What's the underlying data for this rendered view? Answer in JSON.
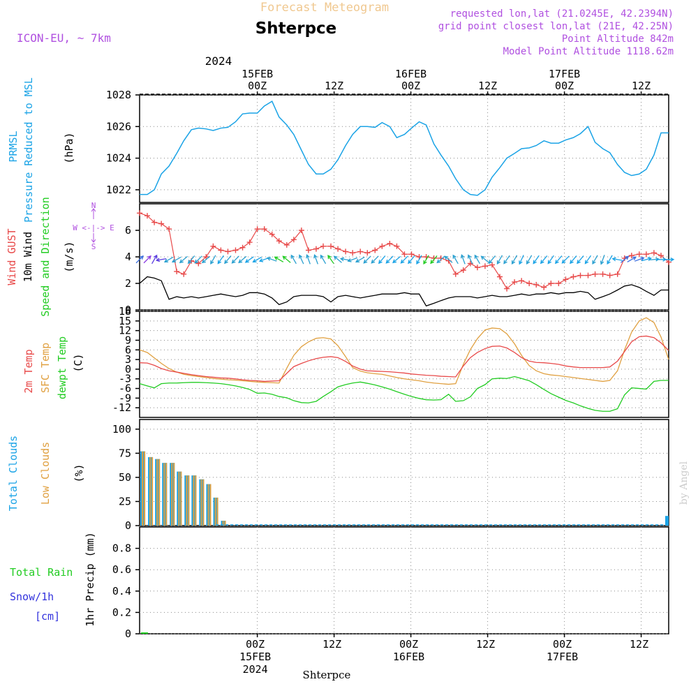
{
  "header": {
    "title": "Forecast Meteogram",
    "location": "Shterpce",
    "model": "ICON-EU, ~ 7km",
    "requested": "requested lon,lat (21.0245E, 42.2394N)",
    "gridpoint": "grid point closest lon,lat (21E, 42.25N)",
    "point_alt": "Point Altitude 842m",
    "model_alt": "Model Point Altitude 1118.62m",
    "footer_name": "Shterpce",
    "credit": "by Angel"
  },
  "time_axis": {
    "top_year": "2024",
    "top_labels": [
      {
        "hour": 0,
        "lines": [
          "15FEB",
          "00Z"
        ]
      },
      {
        "hour": 12,
        "lines": [
          "12Z"
        ]
      },
      {
        "hour": 24,
        "lines": [
          "16FEB",
          "00Z"
        ]
      },
      {
        "hour": 36,
        "lines": [
          "12Z"
        ]
      },
      {
        "hour": 48,
        "lines": [
          "17FEB",
          "00Z"
        ]
      },
      {
        "hour": 60,
        "lines": [
          "12Z"
        ]
      }
    ],
    "bottom_labels": [
      {
        "hour": 0,
        "lines": [
          "00Z",
          "15FEB",
          "2024"
        ]
      },
      {
        "hour": 12,
        "lines": [
          "12Z"
        ]
      },
      {
        "hour": 24,
        "lines": [
          "00Z",
          "16FEB"
        ]
      },
      {
        "hour": 36,
        "lines": [
          "12Z"
        ]
      },
      {
        "hour": 48,
        "lines": [
          "00Z",
          "17FEB"
        ]
      },
      {
        "hour": 60,
        "lines": [
          "12Z"
        ]
      }
    ]
  },
  "panel_labels": {
    "pressure": {
      "l1": "PRMSL",
      "l2": "Pressure Reduced to MSL",
      "unit": "(hPa)"
    },
    "wind": {
      "l1": "Wind GUST",
      "l2": "10m Wind",
      "l3": "Speed and Direction",
      "unit": "(m/s)",
      "compass_n": "N",
      "compass_s": "S",
      "compass_ew": "W <-|-> E"
    },
    "temp": {
      "l1": "2m Temp",
      "l2": "SFC Temp",
      "l3": "dewpt Temp",
      "unit": "(C)"
    },
    "cloud": {
      "l1": "Total Clouds",
      "l2": "Low Clouds",
      "unit": "(%)"
    },
    "precip": {
      "l1": "Total  Rain",
      "l2": "Snow/1h",
      "l3": "[cm]",
      "unit": "1hr Precip (mm)"
    }
  },
  "colors": {
    "pressure": "#1aa3e6",
    "gust": "#e84a4a",
    "wind": "#000000",
    "temp2m": "#e84a4a",
    "sfc": "#e0a040",
    "dewpt": "#22cc22",
    "totalcloud": "#1aa3e6",
    "lowcloud": "#e0a040",
    "header_purple": "#b050e0",
    "title_orange": "#f0c890",
    "rain": "#22cc22",
    "snow": "#3333dd"
  },
  "chart_data": [
    {
      "type": "line",
      "ylabel": "(hPa)",
      "ylim": [
        1021.2,
        1028
      ],
      "yticks": [
        1022,
        1024,
        1026,
        1028
      ],
      "x": [
        -18.4,
        -17.2,
        -16.1,
        -15.0,
        -13.8,
        -12.6,
        -11.5,
        -10.3,
        -9.2,
        -8.0,
        -6.9,
        -5.7,
        -4.6,
        -3.4,
        -2.3,
        -1.2,
        0.0,
        1.1,
        2.3,
        3.4,
        4.6,
        5.7,
        6.9,
        8.0,
        9.2,
        10.3,
        11.5,
        12.6,
        13.8,
        14.9,
        16.1,
        17.2,
        18.4,
        19.5,
        20.7,
        21.8,
        23.0,
        24.1,
        25.3,
        26.4,
        27.6,
        28.7,
        29.9,
        31.0,
        32.2,
        33.3,
        34.4,
        35.6,
        36.7,
        37.9,
        39.0,
        40.2,
        41.3,
        42.5,
        43.6,
        44.8,
        45.9,
        47.1,
        48.2,
        49.4,
        50.5,
        51.7,
        52.8,
        54.0,
        55.1,
        56.3,
        57.4,
        58.5,
        59.7,
        60.8,
        62.0,
        63.1,
        64.3
      ],
      "series": [
        {
          "name": "PRMSL",
          "values": [
            1021.7,
            1021.7,
            1022.0,
            1023.0,
            1023.5,
            1024.3,
            1025.1,
            1025.8,
            1025.9,
            1025.85,
            1025.75,
            1025.9,
            1025.95,
            1026.3,
            1026.8,
            1026.85,
            1026.85,
            1027.3,
            1027.6,
            1026.6,
            1026.1,
            1025.5,
            1024.5,
            1023.6,
            1023.0,
            1023.0,
            1023.3,
            1023.9,
            1024.8,
            1025.5,
            1026.0,
            1026.0,
            1025.95,
            1026.25,
            1026.0,
            1025.3,
            1025.5,
            1025.9,
            1026.3,
            1026.1,
            1024.9,
            1024.2,
            1023.5,
            1022.7,
            1022.0,
            1021.7,
            1021.65,
            1022.0,
            1022.8,
            1023.4,
            1024.0,
            1024.3,
            1024.6,
            1024.65,
            1024.8,
            1025.1,
            1024.95,
            1024.95,
            1025.15,
            1025.3,
            1025.55,
            1026.0,
            1025.0,
            1024.6,
            1024.35,
            1023.6,
            1023.1,
            1022.9,
            1023.0,
            1023.3,
            1024.2,
            1025.6,
            1025.6
          ]
        }
      ]
    },
    {
      "type": "line",
      "ylabel": "(m/s)",
      "ylim": [
        0,
        8
      ],
      "yticks": [
        0,
        2,
        4,
        6
      ],
      "x": [
        -18.4,
        -17.2,
        -16.1,
        -15.0,
        -13.8,
        -12.6,
        -11.5,
        -10.3,
        -9.2,
        -8.0,
        -6.9,
        -5.7,
        -4.6,
        -3.4,
        -2.3,
        -1.2,
        0.0,
        1.1,
        2.3,
        3.4,
        4.6,
        5.7,
        6.9,
        8.0,
        9.2,
        10.3,
        11.5,
        12.6,
        13.8,
        14.9,
        16.1,
        17.2,
        18.4,
        19.5,
        20.7,
        21.8,
        23.0,
        24.1,
        25.3,
        26.4,
        27.6,
        28.7,
        29.9,
        31.0,
        32.2,
        33.3,
        34.4,
        35.6,
        36.7,
        37.9,
        39.0,
        40.2,
        41.3,
        42.5,
        43.6,
        44.8,
        45.9,
        47.1,
        48.2,
        49.4,
        50.5,
        51.7,
        52.8,
        54.0,
        55.1,
        56.3,
        57.4,
        58.5,
        59.7,
        60.8,
        62.0,
        63.1,
        64.3
      ],
      "series": [
        {
          "name": "Wind GUST",
          "values": [
            7.3,
            7.1,
            6.6,
            6.5,
            6.1,
            2.9,
            2.7,
            3.7,
            3.5,
            4.0,
            4.8,
            4.5,
            4.4,
            4.5,
            4.7,
            5.1,
            6.1,
            6.1,
            5.7,
            5.2,
            4.9,
            5.3,
            6.0,
            4.5,
            4.6,
            4.8,
            4.8,
            4.6,
            4.4,
            4.3,
            4.4,
            4.3,
            4.5,
            4.8,
            5.0,
            4.8,
            4.2,
            4.2,
            4.0,
            4.0,
            3.9,
            3.9,
            3.7,
            2.7,
            3.0,
            3.5,
            3.2,
            3.3,
            3.4,
            2.5,
            1.6,
            2.1,
            2.2,
            2.0,
            1.9,
            1.7,
            2.0,
            2.0,
            2.3,
            2.5,
            2.6,
            2.6,
            2.7,
            2.7,
            2.6,
            2.7,
            3.9,
            4.1,
            4.2,
            4.2,
            4.3,
            4.1,
            3.6
          ]
        },
        {
          "name": "10m Wind",
          "values": [
            2.0,
            2.5,
            2.4,
            2.2,
            0.8,
            1.0,
            0.9,
            1.0,
            0.9,
            1.0,
            1.1,
            1.2,
            1.1,
            1.0,
            1.1,
            1.3,
            1.3,
            1.2,
            0.9,
            0.4,
            0.6,
            1.0,
            1.1,
            1.1,
            1.1,
            1.0,
            0.6,
            1.0,
            1.1,
            1.0,
            0.9,
            1.0,
            1.1,
            1.2,
            1.2,
            1.2,
            1.3,
            1.2,
            1.2,
            0.3,
            0.5,
            0.7,
            0.9,
            1.0,
            1.0,
            1.0,
            0.9,
            1.0,
            1.1,
            1.0,
            1.0,
            1.1,
            1.2,
            1.1,
            1.2,
            1.2,
            1.3,
            1.2,
            1.3,
            1.3,
            1.4,
            1.3,
            0.8,
            1.0,
            1.2,
            1.5,
            1.8,
            1.9,
            1.7,
            1.4,
            1.1,
            1.5,
            1.5
          ]
        }
      ],
      "wind_barbs": {
        "height_m_s": 3.8,
        "direction_from_deg": [
          225,
          225,
          210,
          80,
          60,
          60,
          50,
          40,
          45,
          50,
          30,
          35,
          40,
          45,
          50,
          55,
          60,
          70,
          110,
          120,
          130,
          150,
          155,
          160,
          160,
          150,
          145,
          130,
          100,
          70,
          60,
          45,
          45,
          40,
          45,
          50,
          45,
          40,
          30,
          30,
          40,
          50,
          130,
          150,
          160,
          155,
          150,
          130,
          40,
          30,
          35,
          30,
          25,
          30,
          35,
          40,
          35,
          40,
          45,
          40,
          40,
          35,
          30,
          20,
          30,
          100,
          230,
          240,
          250,
          255,
          265,
          270,
          270
        ]
      }
    },
    {
      "type": "line",
      "ylabel": "(C)",
      "ylim": [
        -15,
        18
      ],
      "yticks": [
        -12,
        -9,
        -6,
        -3,
        0,
        3,
        6,
        9,
        12,
        15,
        18
      ],
      "x": [
        -18.4,
        -17.2,
        -16.1,
        -15.0,
        -13.8,
        -12.6,
        -11.5,
        -10.3,
        -9.2,
        -8.0,
        -6.9,
        -5.7,
        -4.6,
        -3.4,
        -2.3,
        -1.2,
        0.0,
        1.1,
        2.3,
        3.4,
        4.6,
        5.7,
        6.9,
        8.0,
        9.2,
        10.3,
        11.5,
        12.6,
        13.8,
        14.9,
        16.1,
        17.2,
        18.4,
        19.5,
        20.7,
        21.8,
        23.0,
        24.1,
        25.3,
        26.4,
        27.6,
        28.7,
        29.9,
        31.0,
        32.2,
        33.3,
        34.4,
        35.6,
        36.7,
        37.9,
        39.0,
        40.2,
        41.3,
        42.5,
        43.6,
        44.8,
        45.9,
        47.1,
        48.2,
        49.4,
        50.5,
        51.7,
        52.8,
        54.0,
        55.1,
        56.3,
        57.4,
        58.5,
        59.7,
        60.8,
        62.0,
        63.1,
        64.3
      ],
      "series": [
        {
          "name": "2m Temp",
          "values": [
            2.0,
            1.9,
            1.2,
            0.2,
            -0.5,
            -0.9,
            -1.3,
            -1.7,
            -2.0,
            -2.3,
            -2.5,
            -2.7,
            -2.8,
            -3.0,
            -3.3,
            -3.5,
            -3.6,
            -3.8,
            -3.7,
            -3.6,
            -1.3,
            0.8,
            1.8,
            2.6,
            3.3,
            3.7,
            3.9,
            3.6,
            2.4,
            1.0,
            0.0,
            -0.5,
            -0.6,
            -0.7,
            -0.8,
            -1.0,
            -1.2,
            -1.5,
            -1.7,
            -1.9,
            -2.0,
            -2.2,
            -2.3,
            -2.4,
            1.0,
            3.6,
            5.2,
            6.4,
            7.1,
            7.2,
            6.6,
            5.2,
            3.6,
            2.5,
            2.1,
            2.0,
            1.8,
            1.5,
            1.0,
            0.7,
            0.5,
            0.5,
            0.5,
            0.5,
            0.7,
            2.5,
            5.5,
            8.5,
            10.1,
            10.3,
            9.8,
            8.2,
            5.8
          ]
        },
        {
          "name": "SFC Temp",
          "values": [
            6.0,
            5.2,
            3.5,
            1.8,
            0.2,
            -0.9,
            -1.6,
            -2.0,
            -2.3,
            -2.6,
            -2.9,
            -3.1,
            -3.3,
            -3.4,
            -3.6,
            -3.8,
            -4.0,
            -4.1,
            -4.2,
            -4.3,
            0.3,
            4.3,
            7.0,
            8.5,
            9.6,
            9.8,
            9.4,
            7.3,
            3.9,
            0.5,
            -0.6,
            -1.1,
            -1.4,
            -1.6,
            -2.1,
            -2.6,
            -3.0,
            -3.3,
            -3.6,
            -4.0,
            -4.3,
            -4.5,
            -4.7,
            -4.5,
            1.5,
            6.1,
            9.5,
            12.2,
            12.8,
            12.6,
            11.0,
            7.9,
            4.3,
            1.1,
            -0.5,
            -1.4,
            -1.8,
            -2.0,
            -2.3,
            -2.6,
            -2.9,
            -3.2,
            -3.5,
            -3.8,
            -3.5,
            -0.5,
            6.0,
            11.5,
            15.0,
            16.0,
            14.5,
            10.0,
            3.0
          ]
        },
        {
          "name": "dewpt Temp",
          "values": [
            -4.5,
            -5.2,
            -5.8,
            -4.5,
            -4.3,
            -4.3,
            -4.2,
            -4.1,
            -4.1,
            -4.2,
            -4.3,
            -4.5,
            -4.8,
            -5.2,
            -5.7,
            -6.3,
            -7.5,
            -7.4,
            -7.8,
            -8.5,
            -8.9,
            -9.8,
            -10.4,
            -10.5,
            -10.0,
            -8.5,
            -7.0,
            -5.5,
            -4.8,
            -4.3,
            -4.0,
            -4.4,
            -4.9,
            -5.5,
            -6.2,
            -7.0,
            -7.8,
            -8.5,
            -9.1,
            -9.5,
            -9.6,
            -9.5,
            -7.8,
            -10.0,
            -9.8,
            -8.6,
            -6.0,
            -4.8,
            -3.0,
            -2.8,
            -2.9,
            -2.3,
            -2.9,
            -3.6,
            -4.8,
            -6.3,
            -7.6,
            -8.7,
            -9.7,
            -10.5,
            -11.4,
            -12.2,
            -12.8,
            -13.1,
            -13.1,
            -12.3,
            -8.0,
            -5.8,
            -6.0,
            -6.2,
            -3.8,
            -3.5,
            -3.5
          ]
        }
      ]
    },
    {
      "type": "bar",
      "ylabel": "(%)",
      "ylim": [
        0,
        110
      ],
      "yticks": [
        0,
        25,
        50,
        75,
        100
      ],
      "x": [
        -17.9,
        -16.7,
        -15.6,
        -14.5,
        -13.3,
        -12.2,
        -11.0,
        -9.9,
        -8.7,
        -7.6,
        -6.5,
        -5.3,
        -4.2,
        -3.0,
        -1.9,
        -0.7
      ],
      "series": [
        {
          "name": "Total Clouds",
          "values": [
            77,
            71,
            69,
            65,
            65,
            56,
            52,
            52,
            48,
            43,
            29,
            5,
            0,
            0,
            0,
            0
          ]
        },
        {
          "name": "Low Clouds",
          "values": [
            77,
            71,
            69,
            65,
            65,
            56,
            52,
            52,
            48,
            43,
            29,
            5,
            0,
            0,
            0,
            0
          ]
        }
      ],
      "end_bar": {
        "x": 64.3,
        "value": 10
      }
    },
    {
      "type": "bar",
      "ylabel": "1hr Precip (mm)",
      "ylim": [
        0,
        1
      ],
      "yticks": [
        0,
        0.2,
        0.4,
        0.6,
        0.8
      ],
      "series": [
        {
          "name": "Total Rain",
          "values": [
            0
          ]
        },
        {
          "name": "Snow/1h",
          "values": [
            0
          ]
        }
      ]
    }
  ]
}
